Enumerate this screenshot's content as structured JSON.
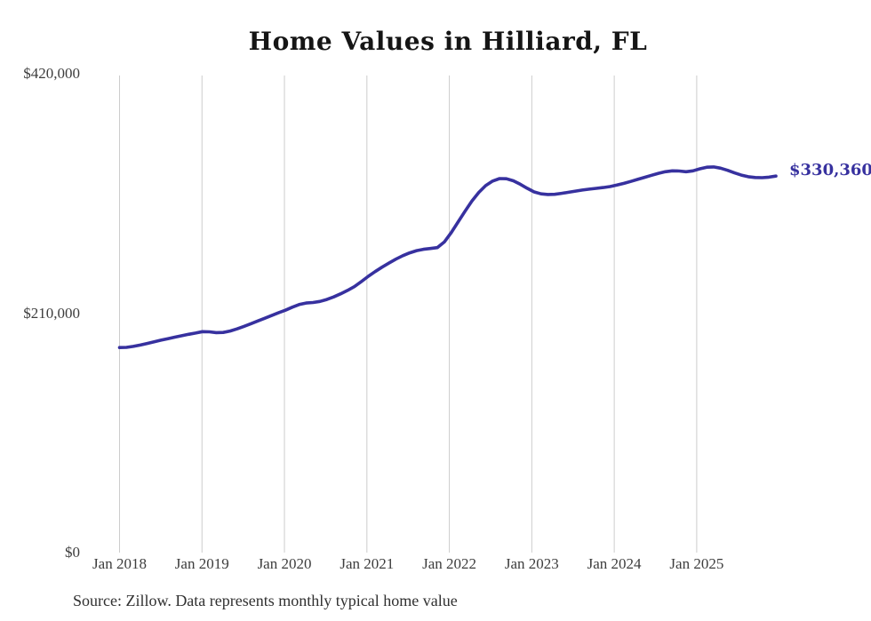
{
  "page": {
    "background_color": "#ffffff"
  },
  "chart": {
    "title": "Home Values in Hilliard, FL",
    "latest_value_label": "$330,360",
    "source_note": "Source: Zillow. Data represents monthly typical home value"
  },
  "chart_data": {
    "type": "line",
    "title": "Home Values in Hilliard, FL",
    "series_name": "Monthly typical home value",
    "xlabel": "",
    "ylabel": "",
    "ylim": [
      0,
      420000
    ],
    "grid": "vertical-only",
    "legend": "none",
    "line_color": "#37319f",
    "gridline_color": "#cccccc",
    "end_label": "$330,360",
    "end_value": 330360,
    "source": "Source: Zillow. Data represents monthly typical home value",
    "y_ticks": [
      {
        "value": 0,
        "label": "$0"
      },
      {
        "value": 210000,
        "label": "$210,000"
      },
      {
        "value": 420000,
        "label": "$420,000"
      }
    ],
    "x_ticks": [
      "Jan 2018",
      "Jan 2019",
      "Jan 2020",
      "Jan 2021",
      "Jan 2022",
      "Jan 2023",
      "Jan 2024",
      "Jan 2025"
    ],
    "x": [
      "2018-01",
      "2018-02",
      "2018-03",
      "2018-04",
      "2018-05",
      "2018-06",
      "2018-07",
      "2018-08",
      "2018-09",
      "2018-10",
      "2018-11",
      "2018-12",
      "2019-01",
      "2019-02",
      "2019-03",
      "2019-04",
      "2019-05",
      "2019-06",
      "2019-07",
      "2019-08",
      "2019-09",
      "2019-10",
      "2019-11",
      "2019-12",
      "2020-01",
      "2020-02",
      "2020-03",
      "2020-04",
      "2020-05",
      "2020-06",
      "2020-07",
      "2020-08",
      "2020-09",
      "2020-10",
      "2020-11",
      "2020-12",
      "2021-01",
      "2021-02",
      "2021-03",
      "2021-04",
      "2021-05",
      "2021-06",
      "2021-07",
      "2021-08",
      "2021-09",
      "2021-10",
      "2021-11",
      "2021-12",
      "2022-01",
      "2022-02",
      "2022-03",
      "2022-04",
      "2022-05",
      "2022-06",
      "2022-07",
      "2022-08",
      "2022-09",
      "2022-10",
      "2022-11",
      "2022-12",
      "2023-01",
      "2023-02",
      "2023-03",
      "2023-04",
      "2023-05",
      "2023-06",
      "2023-07",
      "2023-08",
      "2023-09",
      "2023-10",
      "2023-11",
      "2023-12",
      "2024-01",
      "2024-02",
      "2024-03",
      "2024-04",
      "2024-05",
      "2024-06",
      "2024-07",
      "2024-08",
      "2024-09",
      "2024-10",
      "2024-11",
      "2024-12",
      "2025-01",
      "2025-02",
      "2025-03",
      "2025-04",
      "2025-05",
      "2025-06",
      "2025-07",
      "2025-08",
      "2025-09",
      "2025-10",
      "2025-11",
      "2025-12"
    ],
    "values": [
      179800,
      180000,
      180800,
      182000,
      183400,
      184900,
      186300,
      187600,
      188900,
      190200,
      191400,
      192500,
      193800,
      193600,
      192900,
      193100,
      194300,
      196200,
      198400,
      200700,
      203100,
      205500,
      207900,
      210300,
      212600,
      215200,
      217600,
      218900,
      219400,
      220300,
      222000,
      224300,
      227000,
      230000,
      233300,
      237800,
      242400,
      246500,
      250400,
      254000,
      257400,
      260500,
      263000,
      264900,
      266100,
      266800,
      267600,
      272500,
      280600,
      290000,
      299500,
      308500,
      316000,
      322000,
      326000,
      328200,
      328000,
      326200,
      323200,
      319700,
      316500,
      314800,
      314200,
      314400,
      315200,
      316200,
      317200,
      318100,
      318900,
      319600,
      320300,
      321200,
      322500,
      324000,
      325700,
      327500,
      329300,
      331100,
      332800,
      334200,
      335000,
      334800,
      334200,
      335000,
      336800,
      338200,
      338400,
      337300,
      335400,
      333200,
      331200,
      329800,
      329100,
      329000,
      329400,
      330360
    ]
  }
}
